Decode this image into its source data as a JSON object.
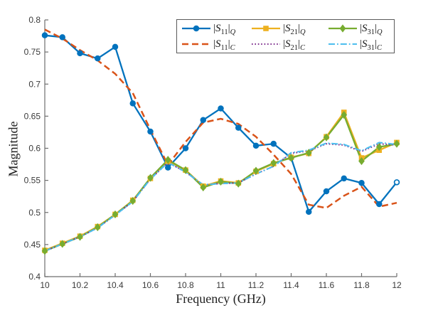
{
  "chart_data": {
    "type": "line",
    "title": "",
    "xlabel": "Frequency (GHz)",
    "ylabel": "Magnitude",
    "xlim": [
      10,
      12
    ],
    "ylim": [
      0.4,
      0.8
    ],
    "grid": false,
    "legend_position": "top-right",
    "legend_layout": {
      "rows": 2,
      "columns": 3
    },
    "axis_color": "#6e6e6e",
    "xticks": [
      {
        "v": 10,
        "label": "10"
      },
      {
        "v": 10.2,
        "label": "10.2"
      },
      {
        "v": 10.4,
        "label": "10.4"
      },
      {
        "v": 10.6,
        "label": "10.6"
      },
      {
        "v": 10.8,
        "label": "10.8"
      },
      {
        "v": 11,
        "label": "11"
      },
      {
        "v": 11.2,
        "label": "11.2"
      },
      {
        "v": 11.4,
        "label": "11.4"
      },
      {
        "v": 11.6,
        "label": "11.6"
      },
      {
        "v": 11.8,
        "label": "11.8"
      },
      {
        "v": 12,
        "label": "12"
      }
    ],
    "yticks": [
      {
        "v": 0.4,
        "label": "0.4"
      },
      {
        "v": 0.45,
        "label": "0.45"
      },
      {
        "v": 0.5,
        "label": "0.5"
      },
      {
        "v": 0.55,
        "label": "0.55"
      },
      {
        "v": 0.6,
        "label": "0.6"
      },
      {
        "v": 0.65,
        "label": "0.65"
      },
      {
        "v": 0.7,
        "label": "0.7"
      },
      {
        "v": 0.75,
        "label": "0.75"
      },
      {
        "v": 0.8,
        "label": "0.8"
      }
    ],
    "x": [
      10,
      10.1,
      10.2,
      10.3,
      10.4,
      10.5,
      10.6,
      10.7,
      10.8,
      10.9,
      11,
      11.1,
      11.2,
      11.3,
      11.4,
      11.5,
      11.6,
      11.7,
      11.8,
      11.9,
      12
    ],
    "series": [
      {
        "name": "S11_Q",
        "legend": {
          "bar": "|",
          "base": "S",
          "sub": "11",
          "mode": "Q"
        },
        "color": "#0072BD",
        "line": "solid",
        "marker": "circle",
        "last_marker_open": true,
        "values": [
          0.776,
          0.773,
          0.748,
          0.74,
          0.758,
          0.67,
          0.626,
          0.57,
          0.6,
          0.644,
          0.662,
          0.632,
          0.604,
          0.607,
          0.585,
          0.501,
          0.533,
          0.553,
          0.546,
          0.513,
          0.547
        ]
      },
      {
        "name": "S21_Q",
        "legend": {
          "bar": "|",
          "base": "S",
          "sub": "21",
          "mode": "Q"
        },
        "color": "#EDB120",
        "line": "solid",
        "marker": "square",
        "last_marker_open": false,
        "values": [
          0.441,
          0.452,
          0.463,
          0.478,
          0.497,
          0.519,
          0.553,
          0.58,
          0.566,
          0.541,
          0.549,
          0.546,
          0.564,
          0.576,
          0.586,
          0.592,
          0.618,
          0.656,
          0.585,
          0.597,
          0.609
        ]
      },
      {
        "name": "S31_Q",
        "legend": {
          "bar": "|",
          "base": "S",
          "sub": "31",
          "mode": "Q"
        },
        "color": "#77AC30",
        "line": "solid",
        "marker": "diamond",
        "last_marker_open": false,
        "values": [
          0.44,
          0.451,
          0.462,
          0.477,
          0.497,
          0.518,
          0.554,
          0.582,
          0.566,
          0.539,
          0.548,
          0.545,
          0.565,
          0.577,
          0.585,
          0.593,
          0.617,
          0.652,
          0.58,
          0.602,
          0.607
        ]
      },
      {
        "name": "S11_C",
        "legend": {
          "bar": "|",
          "base": "S",
          "sub": "11",
          "mode": "C"
        },
        "color": "#D95319",
        "line": "dashed",
        "marker": "none",
        "last_marker_open": false,
        "values": [
          0.785,
          0.771,
          0.753,
          0.737,
          0.716,
          0.686,
          0.629,
          0.574,
          0.61,
          0.64,
          0.646,
          0.638,
          0.618,
          0.59,
          0.56,
          0.512,
          0.507,
          0.526,
          0.54,
          0.509,
          0.515
        ]
      },
      {
        "name": "S21_C",
        "legend": {
          "bar": "|",
          "base": "S",
          "sub": "21",
          "mode": "C"
        },
        "color": "#7E2F8E",
        "line": "dotted",
        "marker": "none",
        "last_marker_open": false,
        "values": [
          0.44,
          0.451,
          0.462,
          0.476,
          0.496,
          0.517,
          0.552,
          0.578,
          0.563,
          0.543,
          0.545,
          0.546,
          0.56,
          0.572,
          0.592,
          0.596,
          0.607,
          0.605,
          0.595,
          0.607,
          0.605
        ]
      },
      {
        "name": "S31_C",
        "legend": {
          "bar": "|",
          "base": "S",
          "sub": "31",
          "mode": "C"
        },
        "color": "#4DBEEE",
        "line": "dashdot",
        "marker": "none",
        "last_marker_open": false,
        "values": [
          0.44,
          0.451,
          0.462,
          0.476,
          0.496,
          0.517,
          0.552,
          0.578,
          0.563,
          0.543,
          0.545,
          0.546,
          0.56,
          0.572,
          0.593,
          0.597,
          0.608,
          0.606,
          0.596,
          0.609,
          0.606
        ]
      }
    ]
  }
}
